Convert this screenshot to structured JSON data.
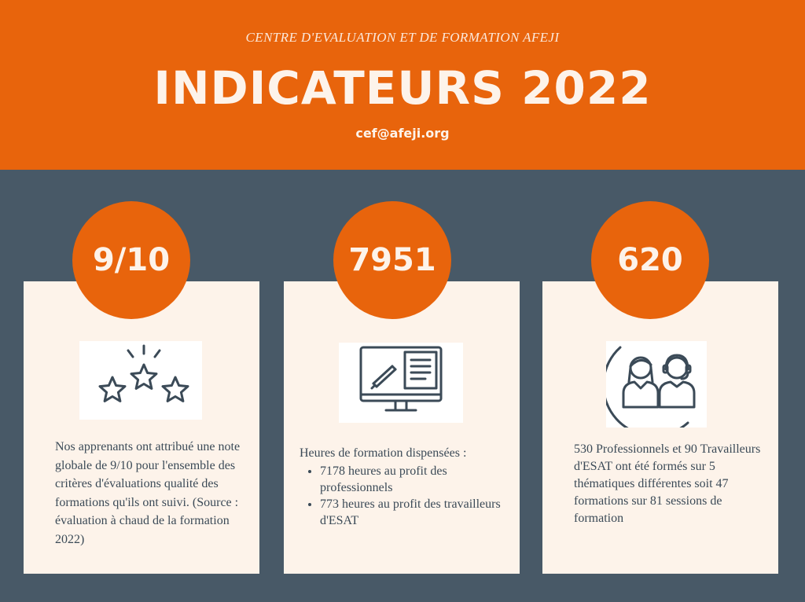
{
  "header": {
    "organization": "CENTRE D'EVALUATION ET DE FORMATION AFEJI",
    "title": "INDICATEURS 2022",
    "email": "cef@afeji.org"
  },
  "cards": [
    {
      "stat": "9/10",
      "icon": "three-stars-icon",
      "text": "Nos apprenants ont attribué une note globale de 9/10 pour l'ensemble des critères d'évaluations qualité des formations qu'ils ont suivi. (Source : évaluation à chaud de la formation 2022)"
    },
    {
      "stat": "7951",
      "icon": "monitor-document-icon",
      "intro": "Heures de formation dispensées :",
      "bullets": [
        "7178 heures au profit des professionnels",
        "773 heures au profit des travailleurs d'ESAT"
      ]
    },
    {
      "stat": "620",
      "icon": "people-icon",
      "text": "530 Professionnels et 90 Travailleurs d'ESAT ont été formés sur 5 thématiques différentes soit 47 formations sur 81 sessions de formation"
    }
  ],
  "colors": {
    "orange": "#e8640c",
    "slate": "#485967",
    "cream": "#fdf3ea",
    "text": "#3b4a57"
  }
}
